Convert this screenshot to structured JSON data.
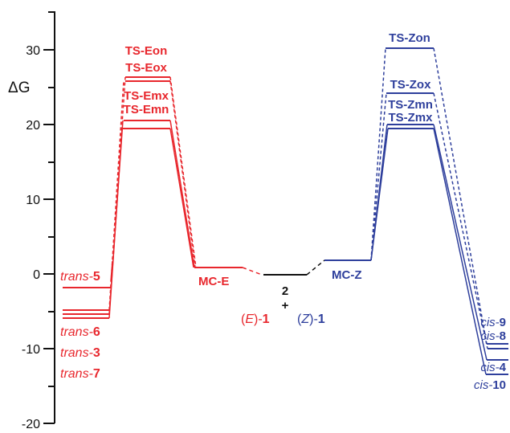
{
  "axis": {
    "ylabel": "ΔG",
    "ticks": [
      30,
      20,
      10,
      0,
      -10,
      -20
    ],
    "tick_labels": [
      "30",
      "20",
      "10",
      "0",
      "-10",
      "-20"
    ]
  },
  "colors": {
    "E": "#e8272d",
    "Z": "#2e3f9c",
    "center": "#111111"
  },
  "center": {
    "line1": "2",
    "line2": "+",
    "left_paren": "(",
    "left_E": "E",
    "left_close": ")-",
    "left_num": "1",
    "right_paren": "(",
    "right_Z": "Z",
    "right_close": ")-",
    "right_num": "1"
  },
  "E_side": {
    "mc_label": "MC-E",
    "ts_labels": [
      "TS-Eon",
      "TS-Eox",
      "TS-Emx",
      "TS-Emn"
    ],
    "products": [
      {
        "prefix": "trans-",
        "num": "5"
      },
      {
        "prefix": "trans-",
        "num": "6"
      },
      {
        "prefix": "trans-",
        "num": "3"
      },
      {
        "prefix": "trans-",
        "num": "7"
      }
    ]
  },
  "Z_side": {
    "mc_label": "MC-Z",
    "ts_labels": [
      "TS-Zon",
      "TS-Zox",
      "TS-Zmn",
      "TS-Zmx"
    ],
    "products": [
      {
        "prefix": "cis-",
        "num": "9"
      },
      {
        "prefix": "cis-",
        "num": "8"
      },
      {
        "prefix": "cis-",
        "num": "4"
      },
      {
        "prefix": "cis-",
        "num": "10"
      }
    ]
  },
  "chart_data": {
    "type": "energy-profile",
    "ylabel": "ΔG",
    "ylim": [
      -20,
      35
    ],
    "levels": {
      "center": 0,
      "MC-E": 1.0,
      "MC-Z": 2.0,
      "TS-Eon": 26.5,
      "TS-Eox": 26.0,
      "TS-Emx": 20.3,
      "TS-Emn": 19.2,
      "TS-Zon": 30.2,
      "TS-Zox": 24.8,
      "TS-Zmn": 20.1,
      "TS-Zmx": 19.3,
      "trans-5": -1.8,
      "trans-6": -4.8,
      "trans-3": -5.3,
      "trans-7": -5.8,
      "cis-9": -9.1,
      "cis-8": -9.8,
      "cis-4": -11.3,
      "cis-10": -13.3
    }
  }
}
